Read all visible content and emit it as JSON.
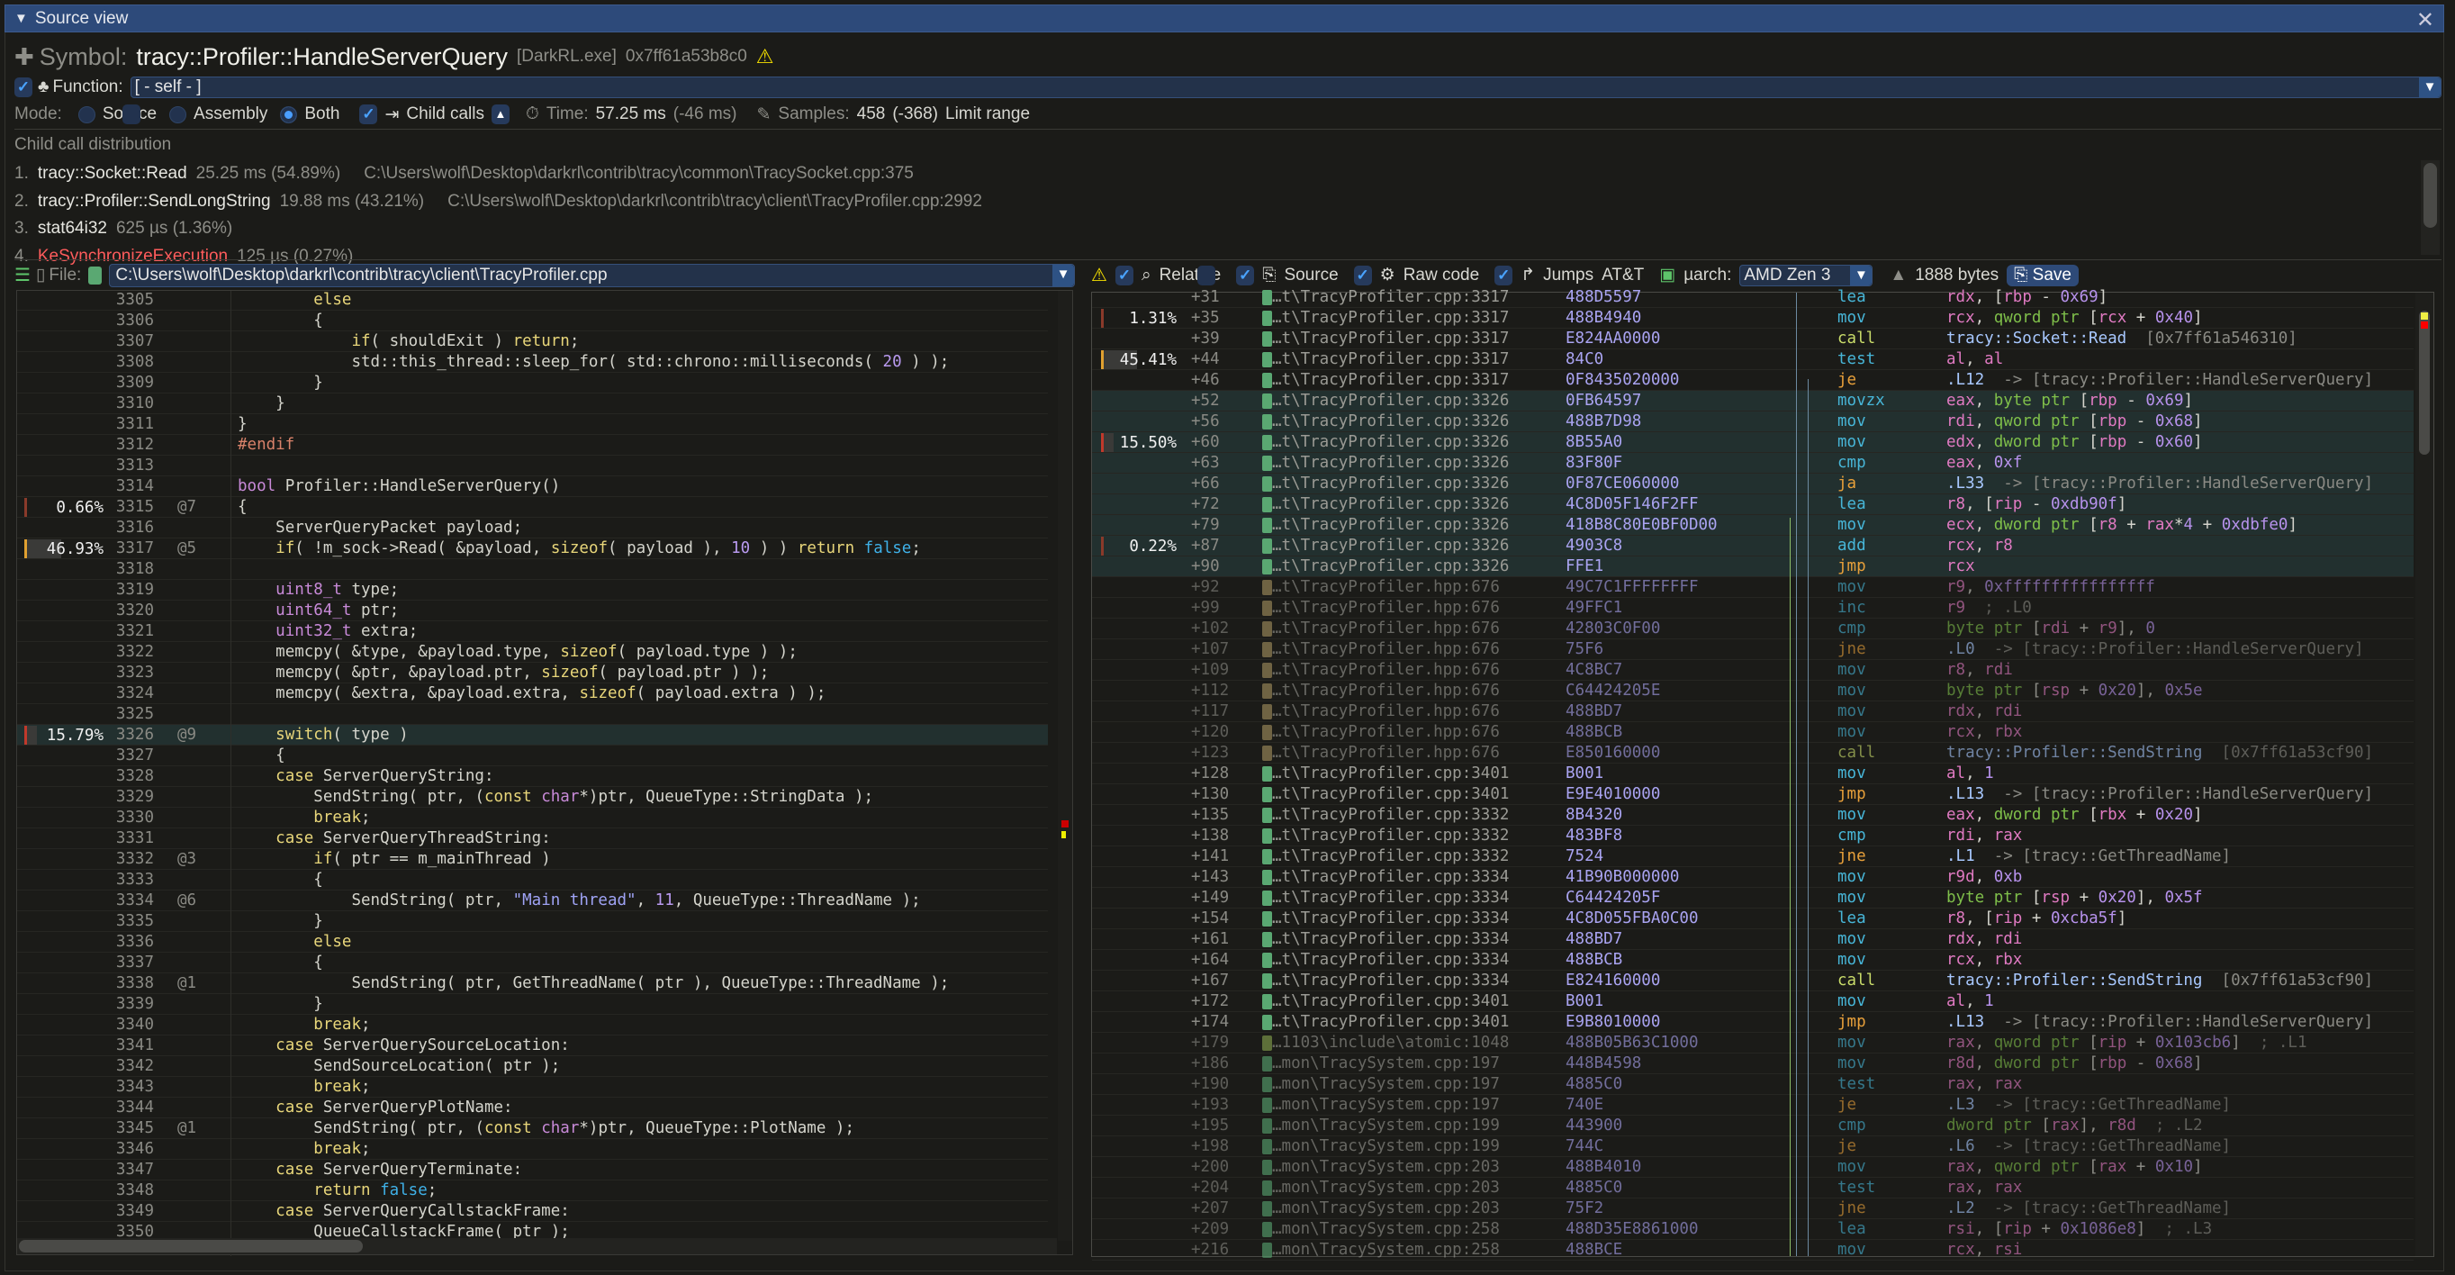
{
  "window": {
    "title": "Source view",
    "close_icon": "close-icon"
  },
  "symbol": {
    "label": "Symbol:",
    "name": "tracy::Profiler::HandleServerQuery",
    "image": "[DarkRL.exe]",
    "address": "0x7ff61a53b8c0",
    "warning_icon": "warning-icon"
  },
  "function": {
    "checked": true,
    "label": "Function:",
    "value": "[ - self - ]"
  },
  "mode": {
    "label": "Mode:",
    "options": [
      "Source",
      "Assembly",
      "Both"
    ],
    "selected": "Both",
    "child_calls_label": "Child calls",
    "child_calls_checked": true,
    "time_label": "Time:",
    "time_value": "57.25 ms",
    "time_delta": "(-46 ms)",
    "samples_label": "Samples:",
    "samples_value": "458",
    "samples_delta": "(-368)",
    "limit_range_label": "Limit range",
    "limit_range_checked": false
  },
  "child_calls": {
    "title": "Child call distribution",
    "items": [
      {
        "idx": "1.",
        "name": "tracy::Socket::Read",
        "stats": "25.25 ms (54.89%)",
        "path": "C:\\Users\\wolf\\Desktop\\darkrl\\contrib\\tracy\\common\\TracySocket.cpp:375",
        "kernel": false
      },
      {
        "idx": "2.",
        "name": "tracy::Profiler::SendLongString",
        "stats": "19.88 ms (43.21%)",
        "path": "C:\\Users\\wolf\\Desktop\\darkrl\\contrib\\tracy\\client\\TracyProfiler.cpp:2992",
        "kernel": false
      },
      {
        "idx": "3.",
        "name": "stat64i32",
        "stats": "625 µs (1.36%)",
        "path": "",
        "kernel": false
      },
      {
        "idx": "4.",
        "name": "KeSynchronizeExecution",
        "stats": "125 µs (0.27%)",
        "path": "",
        "kernel": true
      }
    ]
  },
  "file": {
    "label": "File:",
    "value": "C:\\Users\\wolf\\Desktop\\darkrl\\contrib\\tracy\\client\\TracyProfiler.cpp"
  },
  "asm_toolbar": {
    "relative": "Relative",
    "source": "Source",
    "raw_code": "Raw code",
    "jumps": "Jumps",
    "att": "AT&T",
    "att_checked": false,
    "uarch_label": "µarch:",
    "uarch_value": "AMD Zen 3",
    "bytes": "1888 bytes",
    "save": "Save"
  },
  "colors": {
    "accent": "#2d4a7a",
    "highlight_row": "#22302f",
    "file_cpp": "#5aa872",
    "file_hpp": "#a89460",
    "file_atomic": "#8aa850",
    "hot_bar": "#c0392b",
    "warm_bar": "#e0a030"
  },
  "source_lines": [
    {
      "n": "3305",
      "text": "        else"
    },
    {
      "n": "3306",
      "text": "        {"
    },
    {
      "n": "3307",
      "text": "            if( shouldExit ) return;"
    },
    {
      "n": "3308",
      "text": "            std::this_thread::sleep_for( std::chrono::milliseconds( 20 ) );"
    },
    {
      "n": "3309",
      "text": "        }"
    },
    {
      "n": "3310",
      "text": "    }"
    },
    {
      "n": "3311",
      "text": "}"
    },
    {
      "n": "3312",
      "text": "#endif"
    },
    {
      "n": "3313",
      "text": ""
    },
    {
      "n": "3314",
      "text": "bool Profiler::HandleServerQuery()"
    },
    {
      "n": "3315",
      "text": "{",
      "pct": "0.66%",
      "frac": 0.0066,
      "bar": "#8a3a2a",
      "at": "@7"
    },
    {
      "n": "3316",
      "text": "    ServerQueryPacket payload;"
    },
    {
      "n": "3317",
      "text": "    if( !m_sock->Read( &payload, sizeof( payload ), 10 ) ) return false;",
      "pct": "46.93%",
      "frac": 0.4693,
      "bar": "#e0a030",
      "at": "@5"
    },
    {
      "n": "3318",
      "text": ""
    },
    {
      "n": "3319",
      "text": "    uint8_t type;"
    },
    {
      "n": "3320",
      "text": "    uint64_t ptr;"
    },
    {
      "n": "3321",
      "text": "    uint32_t extra;"
    },
    {
      "n": "3322",
      "text": "    memcpy( &type, &payload.type, sizeof( payload.type ) );"
    },
    {
      "n": "3323",
      "text": "    memcpy( &ptr, &payload.ptr, sizeof( payload.ptr ) );"
    },
    {
      "n": "3324",
      "text": "    memcpy( &extra, &payload.extra, sizeof( payload.extra ) );"
    },
    {
      "n": "3325",
      "text": ""
    },
    {
      "n": "3326",
      "text": "    switch( type )",
      "pct": "15.79%",
      "frac": 0.1579,
      "bar": "#c0392b",
      "at": "@9",
      "hl": true
    },
    {
      "n": "3327",
      "text": "    {"
    },
    {
      "n": "3328",
      "text": "    case ServerQueryString:"
    },
    {
      "n": "3329",
      "text": "        SendString( ptr, (const char*)ptr, QueueType::StringData );"
    },
    {
      "n": "3330",
      "text": "        break;"
    },
    {
      "n": "3331",
      "text": "    case ServerQueryThreadString:"
    },
    {
      "n": "3332",
      "text": "        if( ptr == m_mainThread )",
      "at": "@3"
    },
    {
      "n": "3333",
      "text": "        {"
    },
    {
      "n": "3334",
      "text": "            SendString( ptr, \"Main thread\", 11, QueueType::ThreadName );",
      "at": "@6"
    },
    {
      "n": "3335",
      "text": "        }"
    },
    {
      "n": "3336",
      "text": "        else"
    },
    {
      "n": "3337",
      "text": "        {"
    },
    {
      "n": "3338",
      "text": "            SendString( ptr, GetThreadName( ptr ), QueueType::ThreadName );",
      "at": "@1"
    },
    {
      "n": "3339",
      "text": "        }"
    },
    {
      "n": "3340",
      "text": "        break;"
    },
    {
      "n": "3341",
      "text": "    case ServerQuerySourceLocation:"
    },
    {
      "n": "3342",
      "text": "        SendSourceLocation( ptr );"
    },
    {
      "n": "3343",
      "text": "        break;"
    },
    {
      "n": "3344",
      "text": "    case ServerQueryPlotName:"
    },
    {
      "n": "3345",
      "text": "        SendString( ptr, (const char*)ptr, QueueType::PlotName );",
      "at": "@1"
    },
    {
      "n": "3346",
      "text": "        break;"
    },
    {
      "n": "3347",
      "text": "    case ServerQueryTerminate:"
    },
    {
      "n": "3348",
      "text": "        return false;"
    },
    {
      "n": "3349",
      "text": "    case ServerQueryCallstackFrame:"
    },
    {
      "n": "3350",
      "text": "        QueueCallstackFrame( ptr );"
    }
  ],
  "asm_lines": [
    {
      "off": "+31",
      "file": "…t\\TracyProfiler.cpp:3317",
      "ft": "cpp",
      "hex": "488D5597",
      "mn": "lea",
      "ops": "rdx, [rbp - 0x69]"
    },
    {
      "off": "+35",
      "file": "…t\\TracyProfiler.cpp:3317",
      "ft": "cpp",
      "hex": "488B4940",
      "mn": "mov",
      "ops": "rcx, qword ptr [rcx + 0x40]",
      "pct": "1.31%",
      "frac": 0.0131,
      "bar": "#8a3a2a"
    },
    {
      "off": "+39",
      "file": "…t\\TracyProfiler.cpp:3317",
      "ft": "cpp",
      "hex": "E824AA0000",
      "mn": "call",
      "ops": "tracy::Socket::Read  [0x7ff61a546310]"
    },
    {
      "off": "+44",
      "file": "…t\\TracyProfiler.cpp:3317",
      "ft": "cpp",
      "hex": "84C0",
      "mn": "test",
      "ops": "al, al",
      "pct": "45.41%",
      "frac": 0.4541,
      "bar": "#e0a030"
    },
    {
      "off": "+46",
      "file": "…t\\TracyProfiler.cpp:3317",
      "ft": "cpp",
      "hex": "0F8435020000",
      "mn": "je",
      "ops": ".L12  -> [tracy::Profiler::HandleServerQuery]"
    },
    {
      "off": "+52",
      "file": "…t\\TracyProfiler.cpp:3326",
      "ft": "cpp",
      "hex": "0FB64597",
      "mn": "movzx",
      "ops": "eax, byte ptr [rbp - 0x69]",
      "hl": true
    },
    {
      "off": "+56",
      "file": "…t\\TracyProfiler.cpp:3326",
      "ft": "cpp",
      "hex": "488B7D98",
      "mn": "mov",
      "ops": "rdi, qword ptr [rbp - 0x68]",
      "hl": true
    },
    {
      "off": "+60",
      "file": "…t\\TracyProfiler.cpp:3326",
      "ft": "cpp",
      "hex": "8B55A0",
      "mn": "mov",
      "ops": "edx, dword ptr [rbp - 0x60]",
      "hl": true,
      "pct": "15.50%",
      "frac": 0.155,
      "bar": "#c0392b"
    },
    {
      "off": "+63",
      "file": "…t\\TracyProfiler.cpp:3326",
      "ft": "cpp",
      "hex": "83F80F",
      "mn": "cmp",
      "ops": "eax, 0xf",
      "hl": true
    },
    {
      "off": "+66",
      "file": "…t\\TracyProfiler.cpp:3326",
      "ft": "cpp",
      "hex": "0F87CE060000",
      "mn": "ja",
      "ops": ".L33  -> [tracy::Profiler::HandleServerQuery]",
      "hl": true
    },
    {
      "off": "+72",
      "file": "…t\\TracyProfiler.cpp:3326",
      "ft": "cpp",
      "hex": "4C8D05F146F2FF",
      "mn": "lea",
      "ops": "r8, [rip - 0xdb90f]",
      "hl": true
    },
    {
      "off": "+79",
      "file": "…t\\TracyProfiler.cpp:3326",
      "ft": "cpp",
      "hex": "418B8C80E0BF0D00",
      "mn": "mov",
      "ops": "ecx, dword ptr [r8 + rax*4 + 0xdbfe0]",
      "hl": true
    },
    {
      "off": "+87",
      "file": "…t\\TracyProfiler.cpp:3326",
      "ft": "cpp",
      "hex": "4903C8",
      "mn": "add",
      "ops": "rcx, r8",
      "hl": true,
      "pct": "0.22%",
      "frac": 0.0022,
      "bar": "#8a3a2a"
    },
    {
      "off": "+90",
      "file": "…t\\TracyProfiler.cpp:3326",
      "ft": "cpp",
      "hex": "FFE1",
      "mn": "jmp",
      "ops": "rcx",
      "hl": true
    },
    {
      "off": "+92",
      "file": "…t\\TracyProfiler.hpp:676",
      "ft": "hpp",
      "hex": "49C7C1FFFFFFFF",
      "mn": "mov",
      "ops": "r9, 0xffffffffffffffff",
      "dim": true
    },
    {
      "off": "+99",
      "file": "…t\\TracyProfiler.hpp:676",
      "ft": "hpp",
      "hex": "49FFC1",
      "mn": "inc",
      "ops": "r9  ; .L0",
      "dim": true
    },
    {
      "off": "+102",
      "file": "…t\\TracyProfiler.hpp:676",
      "ft": "hpp",
      "hex": "42803C0F00",
      "mn": "cmp",
      "ops": "byte ptr [rdi + r9], 0",
      "dim": true
    },
    {
      "off": "+107",
      "file": "…t\\TracyProfiler.hpp:676",
      "ft": "hpp",
      "hex": "75F6",
      "mn": "jne",
      "ops": ".L0  -> [tracy::Profiler::HandleServerQuery]",
      "dim": true
    },
    {
      "off": "+109",
      "file": "…t\\TracyProfiler.hpp:676",
      "ft": "hpp",
      "hex": "4C8BC7",
      "mn": "mov",
      "ops": "r8, rdi",
      "dim": true
    },
    {
      "off": "+112",
      "file": "…t\\TracyProfiler.hpp:676",
      "ft": "hpp",
      "hex": "C64424205E",
      "mn": "mov",
      "ops": "byte ptr [rsp + 0x20], 0x5e",
      "dim": true
    },
    {
      "off": "+117",
      "file": "…t\\TracyProfiler.hpp:676",
      "ft": "hpp",
      "hex": "488BD7",
      "mn": "mov",
      "ops": "rdx, rdi",
      "dim": true
    },
    {
      "off": "+120",
      "file": "…t\\TracyProfiler.hpp:676",
      "ft": "hpp",
      "hex": "488BCB",
      "mn": "mov",
      "ops": "rcx, rbx",
      "dim": true
    },
    {
      "off": "+123",
      "file": "…t\\TracyProfiler.hpp:676",
      "ft": "hpp",
      "hex": "E850160000",
      "mn": "call",
      "ops": "tracy::Profiler::SendString  [0x7ff61a53cf90]",
      "dim": true
    },
    {
      "off": "+128",
      "file": "…t\\TracyProfiler.cpp:3401",
      "ft": "cpp",
      "hex": "B001",
      "mn": "mov",
      "ops": "al, 1"
    },
    {
      "off": "+130",
      "file": "…t\\TracyProfiler.cpp:3401",
      "ft": "cpp",
      "hex": "E9E4010000",
      "mn": "jmp",
      "ops": ".L13  -> [tracy::Profiler::HandleServerQuery]"
    },
    {
      "off": "+135",
      "file": "…t\\TracyProfiler.cpp:3332",
      "ft": "cpp",
      "hex": "8B4320",
      "mn": "mov",
      "ops": "eax, dword ptr [rbx + 0x20]"
    },
    {
      "off": "+138",
      "file": "…t\\TracyProfiler.cpp:3332",
      "ft": "cpp",
      "hex": "483BF8",
      "mn": "cmp",
      "ops": "rdi, rax"
    },
    {
      "off": "+141",
      "file": "…t\\TracyProfiler.cpp:3332",
      "ft": "cpp",
      "hex": "7524",
      "mn": "jne",
      "ops": ".L1  -> [tracy::GetThreadName]"
    },
    {
      "off": "+143",
      "file": "…t\\TracyProfiler.cpp:3334",
      "ft": "cpp",
      "hex": "41B90B000000",
      "mn": "mov",
      "ops": "r9d, 0xb"
    },
    {
      "off": "+149",
      "file": "…t\\TracyProfiler.cpp:3334",
      "ft": "cpp",
      "hex": "C64424205F",
      "mn": "mov",
      "ops": "byte ptr [rsp + 0x20], 0x5f"
    },
    {
      "off": "+154",
      "file": "…t\\TracyProfiler.cpp:3334",
      "ft": "cpp",
      "hex": "4C8D055FBA0C00",
      "mn": "lea",
      "ops": "r8, [rip + 0xcba5f]"
    },
    {
      "off": "+161",
      "file": "…t\\TracyProfiler.cpp:3334",
      "ft": "cpp",
      "hex": "488BD7",
      "mn": "mov",
      "ops": "rdx, rdi"
    },
    {
      "off": "+164",
      "file": "…t\\TracyProfiler.cpp:3334",
      "ft": "cpp",
      "hex": "488BCB",
      "mn": "mov",
      "ops": "rcx, rbx"
    },
    {
      "off": "+167",
      "file": "…t\\TracyProfiler.cpp:3334",
      "ft": "cpp",
      "hex": "E824160000",
      "mn": "call",
      "ops": "tracy::Profiler::SendString  [0x7ff61a53cf90]"
    },
    {
      "off": "+172",
      "file": "…t\\TracyProfiler.cpp:3401",
      "ft": "cpp",
      "hex": "B001",
      "mn": "mov",
      "ops": "al, 1"
    },
    {
      "off": "+174",
      "file": "…t\\TracyProfiler.cpp:3401",
      "ft": "cpp",
      "hex": "E9B8010000",
      "mn": "jmp",
      "ops": ".L13  -> [tracy::Profiler::HandleServerQuery]"
    },
    {
      "off": "+179",
      "file": "…1103\\include\\atomic:1048",
      "ft": "atomic",
      "hex": "488B05B63C1000",
      "mn": "mov",
      "ops": "rax, qword ptr [rip + 0x103cb6]  ; .L1",
      "dim": true
    },
    {
      "off": "+186",
      "file": "…mon\\TracySystem.cpp:197",
      "ft": "cpp",
      "hex": "448B4598",
      "mn": "mov",
      "ops": "r8d, dword ptr [rbp - 0x68]",
      "dim": true
    },
    {
      "off": "+190",
      "file": "…mon\\TracySystem.cpp:197",
      "ft": "cpp",
      "hex": "4885C0",
      "mn": "test",
      "ops": "rax, rax",
      "dim": true
    },
    {
      "off": "+193",
      "file": "…mon\\TracySystem.cpp:197",
      "ft": "cpp",
      "hex": "740E",
      "mn": "je",
      "ops": ".L3  -> [tracy::GetThreadName]",
      "dim": true
    },
    {
      "off": "+195",
      "file": "…mon\\TracySystem.cpp:199",
      "ft": "cpp",
      "hex": "443900",
      "mn": "cmp",
      "ops": "dword ptr [rax], r8d  ; .L2",
      "dim": true
    },
    {
      "off": "+198",
      "file": "…mon\\TracySystem.cpp:199",
      "ft": "cpp",
      "hex": "744C",
      "mn": "je",
      "ops": ".L6  -> [tracy::GetThreadName]",
      "dim": true
    },
    {
      "off": "+200",
      "file": "…mon\\TracySystem.cpp:203",
      "ft": "cpp",
      "hex": "488B4010",
      "mn": "mov",
      "ops": "rax, qword ptr [rax + 0x10]",
      "dim": true
    },
    {
      "off": "+204",
      "file": "…mon\\TracySystem.cpp:203",
      "ft": "cpp",
      "hex": "4885C0",
      "mn": "test",
      "ops": "rax, rax",
      "dim": true
    },
    {
      "off": "+207",
      "file": "…mon\\TracySystem.cpp:203",
      "ft": "cpp",
      "hex": "75F2",
      "mn": "jne",
      "ops": ".L2  -> [tracy::GetThreadName]",
      "dim": true
    },
    {
      "off": "+209",
      "file": "…mon\\TracySystem.cpp:258",
      "ft": "cpp",
      "hex": "488D35E8861000",
      "mn": "lea",
      "ops": "rsi, [rip + 0x1086e8]  ; .L3",
      "dim": true
    },
    {
      "off": "+216",
      "file": "…mon\\TracySystem.cpp:258",
      "ft": "cpp",
      "hex": "488BCE",
      "mn": "mov",
      "ops": "rcx, rsi",
      "dim": true
    }
  ]
}
